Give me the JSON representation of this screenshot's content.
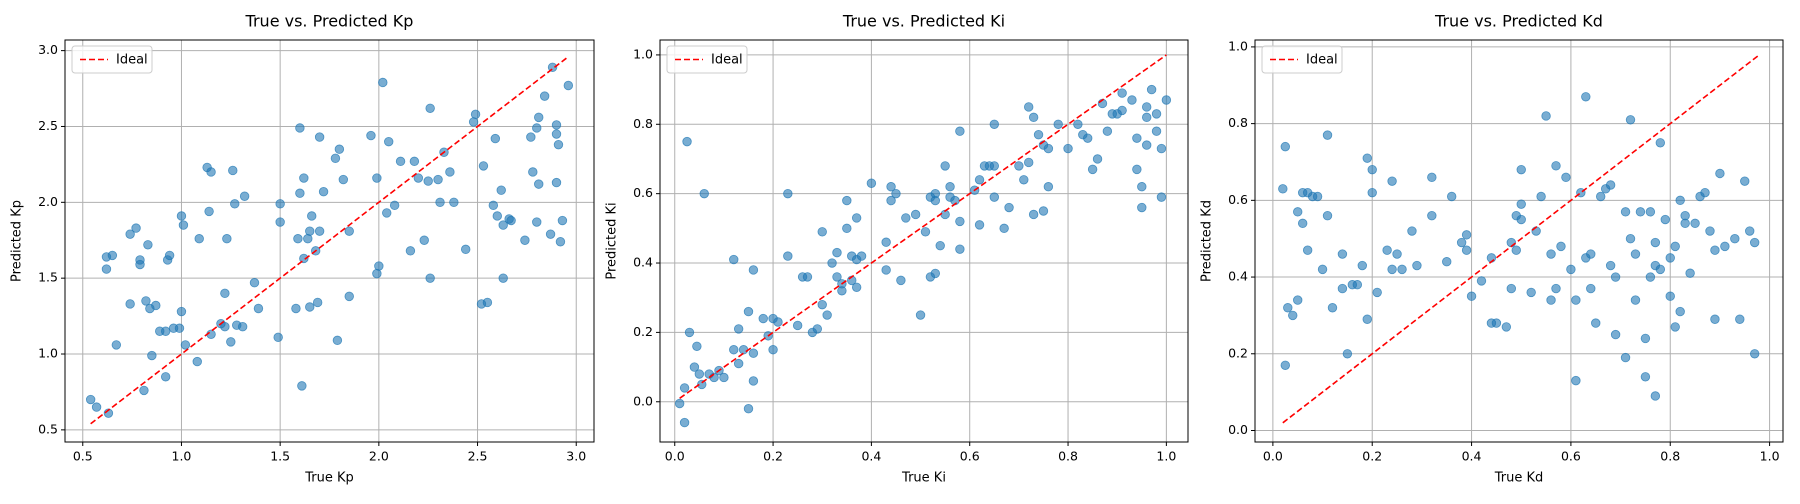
{
  "chart_data": [
    {
      "type": "scatter",
      "title": "True vs. Predicted Kp",
      "xlabel": "True Kp",
      "ylabel": "Predicted Kp",
      "grid": true,
      "legend": "upper left",
      "xlim": [
        0.41,
        3.09
      ],
      "ylim": [
        0.42,
        3.07
      ],
      "xticks": [
        0.5,
        {
          "value": 1,
          "label": "1.0"
        },
        1.5,
        {
          "value": 2,
          "label": "2.0"
        },
        2.5,
        {
          "value": 3,
          "label": "3.0"
        }
      ],
      "yticks": [
        0.5,
        {
          "value": 1,
          "label": "1.0"
        },
        1.5,
        {
          "value": 2,
          "label": "2.0"
        },
        2.5,
        {
          "value": 3,
          "label": "3.0"
        }
      ],
      "ideal": {
        "name": "Ideal",
        "color": "#ff0000",
        "style": "dashed",
        "x": [
          0.54,
          2.96
        ],
        "values": [
          0.54,
          2.96
        ]
      },
      "series": [
        {
          "color": "#1f77b4",
          "opacity": 0.6,
          "x": [
            0.54,
            0.57,
            0.63,
            0.62,
            0.62,
            0.65,
            0.67,
            0.74,
            0.74,
            0.77,
            0.79,
            0.79,
            0.81,
            0.82,
            0.83,
            0.84,
            0.85,
            0.87,
            0.89,
            0.92,
            0.92,
            0.93,
            0.94,
            0.96,
            0.99,
            1.0,
            1.0,
            1.01,
            1.02,
            1.08,
            1.09,
            1.13,
            1.14,
            1.15,
            1.15,
            1.2,
            1.22,
            1.22,
            1.23,
            1.25,
            1.26,
            1.27,
            1.28,
            1.31,
            1.32,
            1.37,
            1.39,
            1.49,
            1.5,
            1.5,
            1.58,
            1.59,
            1.6,
            1.6,
            1.61,
            1.62,
            1.62,
            1.64,
            1.65,
            1.66,
            1.65,
            1.68,
            1.69,
            1.7,
            1.7,
            1.72,
            1.78,
            1.79,
            1.8,
            1.82,
            1.85,
            1.85,
            1.96,
            1.99,
            1.99,
            2.0,
            2.02,
            2.04,
            2.05,
            2.08,
            2.11,
            2.16,
            2.18,
            2.2,
            2.23,
            2.25,
            2.26,
            2.26,
            2.3,
            2.31,
            2.33,
            2.36,
            2.38,
            2.44,
            2.48,
            2.49,
            2.52,
            2.53,
            2.55,
            2.58,
            2.59,
            2.6,
            2.62,
            2.63,
            2.63,
            2.66,
            2.67,
            2.74,
            2.77,
            2.78,
            2.8,
            2.8,
            2.81,
            2.81,
            2.84,
            2.87,
            2.88,
            2.9,
            2.9,
            2.9,
            2.91,
            2.92,
            2.93,
            2.96
          ],
          "values": [
            0.7,
            0.65,
            0.61,
            1.64,
            1.56,
            1.65,
            1.06,
            1.33,
            1.79,
            1.83,
            1.62,
            1.59,
            0.76,
            1.35,
            1.72,
            1.3,
            0.99,
            1.32,
            1.15,
            0.85,
            1.15,
            1.62,
            1.65,
            1.17,
            1.17,
            1.28,
            1.91,
            1.85,
            1.06,
            0.95,
            1.76,
            2.23,
            1.94,
            2.2,
            1.13,
            1.2,
            1.18,
            1.4,
            1.76,
            1.08,
            2.21,
            1.99,
            1.19,
            1.18,
            2.04,
            1.47,
            1.3,
            1.11,
            1.99,
            1.87,
            1.3,
            1.76,
            2.49,
            2.06,
            0.79,
            2.16,
            1.63,
            1.76,
            1.31,
            1.91,
            1.81,
            1.68,
            1.34,
            1.81,
            2.43,
            2.07,
            2.29,
            1.09,
            2.35,
            2.15,
            1.38,
            1.81,
            2.44,
            2.16,
            1.53,
            1.58,
            2.79,
            1.93,
            2.4,
            1.98,
            2.27,
            1.68,
            2.27,
            2.16,
            1.75,
            2.14,
            2.62,
            1.5,
            2.15,
            2.0,
            2.33,
            2.2,
            2.0,
            1.69,
            2.53,
            2.58,
            1.33,
            2.24,
            1.34,
            1.98,
            2.42,
            1.91,
            2.08,
            1.85,
            1.5,
            1.89,
            1.88,
            1.75,
            2.43,
            2.2,
            2.49,
            1.87,
            2.12,
            2.56,
            2.7,
            1.79,
            2.89,
            2.51,
            2.45,
            2.13,
            2.38,
            1.74,
            1.88,
            2.77
          ]
        }
      ]
    },
    {
      "type": "scatter",
      "title": "True vs. Predicted Ki",
      "xlabel": "True Ki",
      "ylabel": "Predicted Ki",
      "grid": true,
      "legend": "upper left",
      "xlim": [
        -0.03,
        1.044
      ],
      "ylim": [
        -0.116,
        1.043
      ],
      "xticks": [
        {
          "value": 0,
          "label": "0.0"
        },
        0.2,
        0.4,
        0.6,
        0.8,
        {
          "value": 1,
          "label": "1.0"
        }
      ],
      "yticks": [
        {
          "value": 0,
          "label": "0.0"
        },
        0.2,
        0.4,
        0.6,
        0.8,
        {
          "value": 1,
          "label": "1.0"
        }
      ],
      "ideal": {
        "name": "Ideal",
        "color": "#ff0000",
        "style": "dashed",
        "x": [
          0.01,
          1.0
        ],
        "values": [
          0.01,
          1.0
        ]
      },
      "series": [
        {
          "color": "#1f77b4",
          "opacity": 0.6,
          "x": [
            0.01,
            0.02,
            0.02,
            0.025,
            0.03,
            0.04,
            0.045,
            0.05,
            0.055,
            0.06,
            0.07,
            0.08,
            0.09,
            0.1,
            0.12,
            0.12,
            0.13,
            0.13,
            0.14,
            0.15,
            0.15,
            0.16,
            0.16,
            0.16,
            0.18,
            0.19,
            0.2,
            0.2,
            0.21,
            0.23,
            0.23,
            0.25,
            0.26,
            0.27,
            0.28,
            0.29,
            0.3,
            0.3,
            0.31,
            0.32,
            0.33,
            0.33,
            0.34,
            0.34,
            0.35,
            0.35,
            0.36,
            0.36,
            0.37,
            0.37,
            0.37,
            0.38,
            0.4,
            0.43,
            0.43,
            0.44,
            0.44,
            0.45,
            0.46,
            0.47,
            0.49,
            0.5,
            0.51,
            0.52,
            0.53,
            0.52,
            0.53,
            0.53,
            0.54,
            0.55,
            0.55,
            0.56,
            0.56,
            0.57,
            0.58,
            0.58,
            0.58,
            0.61,
            0.62,
            0.62,
            0.63,
            0.64,
            0.65,
            0.65,
            0.65,
            0.67,
            0.68,
            0.7,
            0.71,
            0.72,
            0.72,
            0.73,
            0.73,
            0.74,
            0.75,
            0.75,
            0.76,
            0.76,
            0.78,
            0.8,
            0.82,
            0.83,
            0.84,
            0.85,
            0.86,
            0.87,
            0.88,
            0.89,
            0.9,
            0.91,
            0.91,
            0.93,
            0.94,
            0.94,
            0.95,
            0.95,
            0.96,
            0.96,
            0.96,
            0.97,
            0.98,
            0.98,
            0.99,
            0.99,
            1.0
          ],
          "values": [
            -0.005,
            -0.06,
            0.04,
            0.75,
            0.2,
            0.1,
            0.16,
            0.08,
            0.05,
            0.6,
            0.08,
            0.07,
            0.09,
            0.07,
            0.41,
            0.15,
            0.11,
            0.21,
            0.15,
            0.26,
            -0.02,
            0.38,
            0.06,
            0.14,
            0.24,
            0.19,
            0.24,
            0.15,
            0.23,
            0.42,
            0.6,
            0.22,
            0.36,
            0.36,
            0.2,
            0.21,
            0.49,
            0.28,
            0.25,
            0.4,
            0.36,
            0.43,
            0.32,
            0.34,
            0.58,
            0.5,
            0.35,
            0.42,
            0.53,
            0.41,
            0.33,
            0.42,
            0.63,
            0.46,
            0.38,
            0.58,
            0.62,
            0.6,
            0.35,
            0.53,
            0.54,
            0.25,
            0.49,
            0.36,
            0.37,
            0.59,
            0.6,
            0.58,
            0.45,
            0.54,
            0.68,
            0.62,
            0.59,
            0.58,
            0.78,
            0.52,
            0.44,
            0.61,
            0.51,
            0.64,
            0.68,
            0.68,
            0.68,
            0.8,
            0.59,
            0.5,
            0.56,
            0.68,
            0.64,
            0.85,
            0.69,
            0.82,
            0.54,
            0.77,
            0.55,
            0.74,
            0.73,
            0.62,
            0.8,
            0.73,
            0.8,
            0.77,
            0.76,
            0.67,
            0.7,
            0.86,
            0.78,
            0.83,
            0.83,
            0.84,
            0.89,
            0.87,
            0.76,
            0.67,
            0.62,
            0.56,
            0.74,
            0.85,
            0.82,
            0.9,
            0.78,
            0.83,
            0.73,
            0.59,
            0.87
          ]
        }
      ]
    },
    {
      "type": "scatter",
      "title": "True vs. Predicted Kd",
      "xlabel": "True Kd",
      "ylabel": "Predicted Kd",
      "grid": true,
      "legend": "upper left",
      "xlim": [
        -0.036,
        1.027
      ],
      "ylim": [
        -0.03,
        1.018
      ],
      "xticks": [
        {
          "value": 0,
          "label": "0.0"
        },
        0.2,
        0.4,
        0.6,
        0.8,
        {
          "value": 1,
          "label": "1.0"
        }
      ],
      "yticks": [
        {
          "value": 0,
          "label": "0.0"
        },
        0.2,
        0.4,
        0.6,
        0.8,
        {
          "value": 1,
          "label": "1.0"
        }
      ],
      "ideal": {
        "name": "Ideal",
        "color": "#ff0000",
        "style": "dashed",
        "x": [
          0.02,
          0.98
        ],
        "values": [
          0.02,
          0.98
        ]
      },
      "series": [
        {
          "color": "#1f77b4",
          "opacity": 0.6,
          "x": [
            0.02,
            0.025,
            0.025,
            0.03,
            0.04,
            0.05,
            0.05,
            0.06,
            0.06,
            0.07,
            0.07,
            0.08,
            0.09,
            0.1,
            0.11,
            0.11,
            0.12,
            0.14,
            0.14,
            0.15,
            0.16,
            0.17,
            0.18,
            0.19,
            0.19,
            0.2,
            0.2,
            0.21,
            0.23,
            0.24,
            0.24,
            0.25,
            0.26,
            0.28,
            0.29,
            0.32,
            0.32,
            0.35,
            0.36,
            0.38,
            0.39,
            0.39,
            0.4,
            0.42,
            0.44,
            0.44,
            0.45,
            0.47,
            0.48,
            0.48,
            0.49,
            0.49,
            0.5,
            0.5,
            0.5,
            0.52,
            0.53,
            0.54,
            0.55,
            0.56,
            0.56,
            0.57,
            0.57,
            0.58,
            0.59,
            0.6,
            0.61,
            0.61,
            0.62,
            0.63,
            0.63,
            0.64,
            0.64,
            0.65,
            0.66,
            0.67,
            0.68,
            0.68,
            0.69,
            0.69,
            0.71,
            0.71,
            0.72,
            0.72,
            0.73,
            0.73,
            0.74,
            0.75,
            0.75,
            0.76,
            0.76,
            0.77,
            0.77,
            0.77,
            0.78,
            0.78,
            0.79,
            0.8,
            0.8,
            0.81,
            0.81,
            0.82,
            0.82,
            0.83,
            0.83,
            0.84,
            0.85,
            0.86,
            0.87,
            0.88,
            0.89,
            0.89,
            0.9,
            0.91,
            0.93,
            0.94,
            0.95,
            0.96,
            0.97,
            0.97
          ],
          "values": [
            0.63,
            0.74,
            0.17,
            0.32,
            0.3,
            0.34,
            0.57,
            0.54,
            0.62,
            0.47,
            0.62,
            0.61,
            0.61,
            0.42,
            0.56,
            0.77,
            0.32,
            0.37,
            0.46,
            0.2,
            0.38,
            0.38,
            0.43,
            0.29,
            0.71,
            0.68,
            0.62,
            0.36,
            0.47,
            0.65,
            0.42,
            0.46,
            0.42,
            0.52,
            0.43,
            0.66,
            0.56,
            0.44,
            0.61,
            0.49,
            0.47,
            0.51,
            0.35,
            0.39,
            0.45,
            0.28,
            0.28,
            0.27,
            0.49,
            0.37,
            0.47,
            0.56,
            0.68,
            0.55,
            0.59,
            0.36,
            0.52,
            0.61,
            0.82,
            0.34,
            0.46,
            0.69,
            0.37,
            0.48,
            0.66,
            0.42,
            0.34,
            0.13,
            0.62,
            0.87,
            0.45,
            0.46,
            0.37,
            0.28,
            0.61,
            0.63,
            0.64,
            0.43,
            0.4,
            0.25,
            0.57,
            0.19,
            0.5,
            0.81,
            0.34,
            0.46,
            0.57,
            0.24,
            0.14,
            0.4,
            0.57,
            0.49,
            0.43,
            0.09,
            0.75,
            0.42,
            0.55,
            0.45,
            0.35,
            0.48,
            0.27,
            0.31,
            0.6,
            0.56,
            0.54,
            0.41,
            0.54,
            0.61,
            0.62,
            0.52,
            0.29,
            0.47,
            0.67,
            0.48,
            0.5,
            0.29,
            0.65,
            0.52,
            0.49,
            0.2
          ]
        }
      ]
    }
  ]
}
